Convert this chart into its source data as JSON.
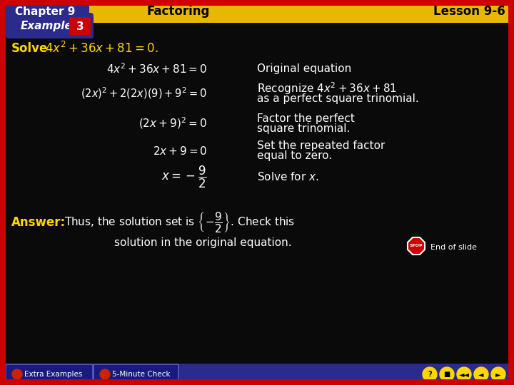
{
  "bg_color": "#0a0a0a",
  "header_bg": "#E8B800",
  "header_text_color": "#000000",
  "header_chapter": "Chapter 9",
  "header_chapter_bg": "#2B2B8C",
  "header_subject": "Factoring",
  "header_lesson": "Lesson 9-6",
  "example_bg": "#2B2B8C",
  "example_num": "3",
  "example_num_bg": "#CC0000",
  "border_color": "#CC0000",
  "solve_label_color": "#FFD700",
  "line1_left": "$4x^2+36x+81=0$",
  "line1_right": "Original equation",
  "line2_left": "$(2x)^2+2(2x)(9)+9^2=0$",
  "line2_right_1": "Recognize $4x^2+36x+81$",
  "line2_right_2": "as a perfect square trinomial.",
  "line3_left": "$(2x+9)^2=0$",
  "line3_right_1": "Factor the perfect",
  "line3_right_2": "square trinomial.",
  "line4_left": "$2x+9=0$",
  "line4_right_1": "Set the repeated factor",
  "line4_right_2": "equal to zero.",
  "line5_left": "$x=-\\dfrac{9}{2}$",
  "line5_right": "Solve for $x$.",
  "answer_label": "Answer:",
  "answer_label_color": "#FFD700",
  "answer_text": "Thus, the solution set is $\\left\\{-\\dfrac{9}{2}\\right\\}$. Check this",
  "answer_text2": "solution in the original equation.",
  "footer_bg": "#2B2B8C",
  "footer_text1": "Extra Examples",
  "footer_text2": "5-Minute Check",
  "text_color": "#FFFFFF",
  "stop_color": "#CC0000"
}
